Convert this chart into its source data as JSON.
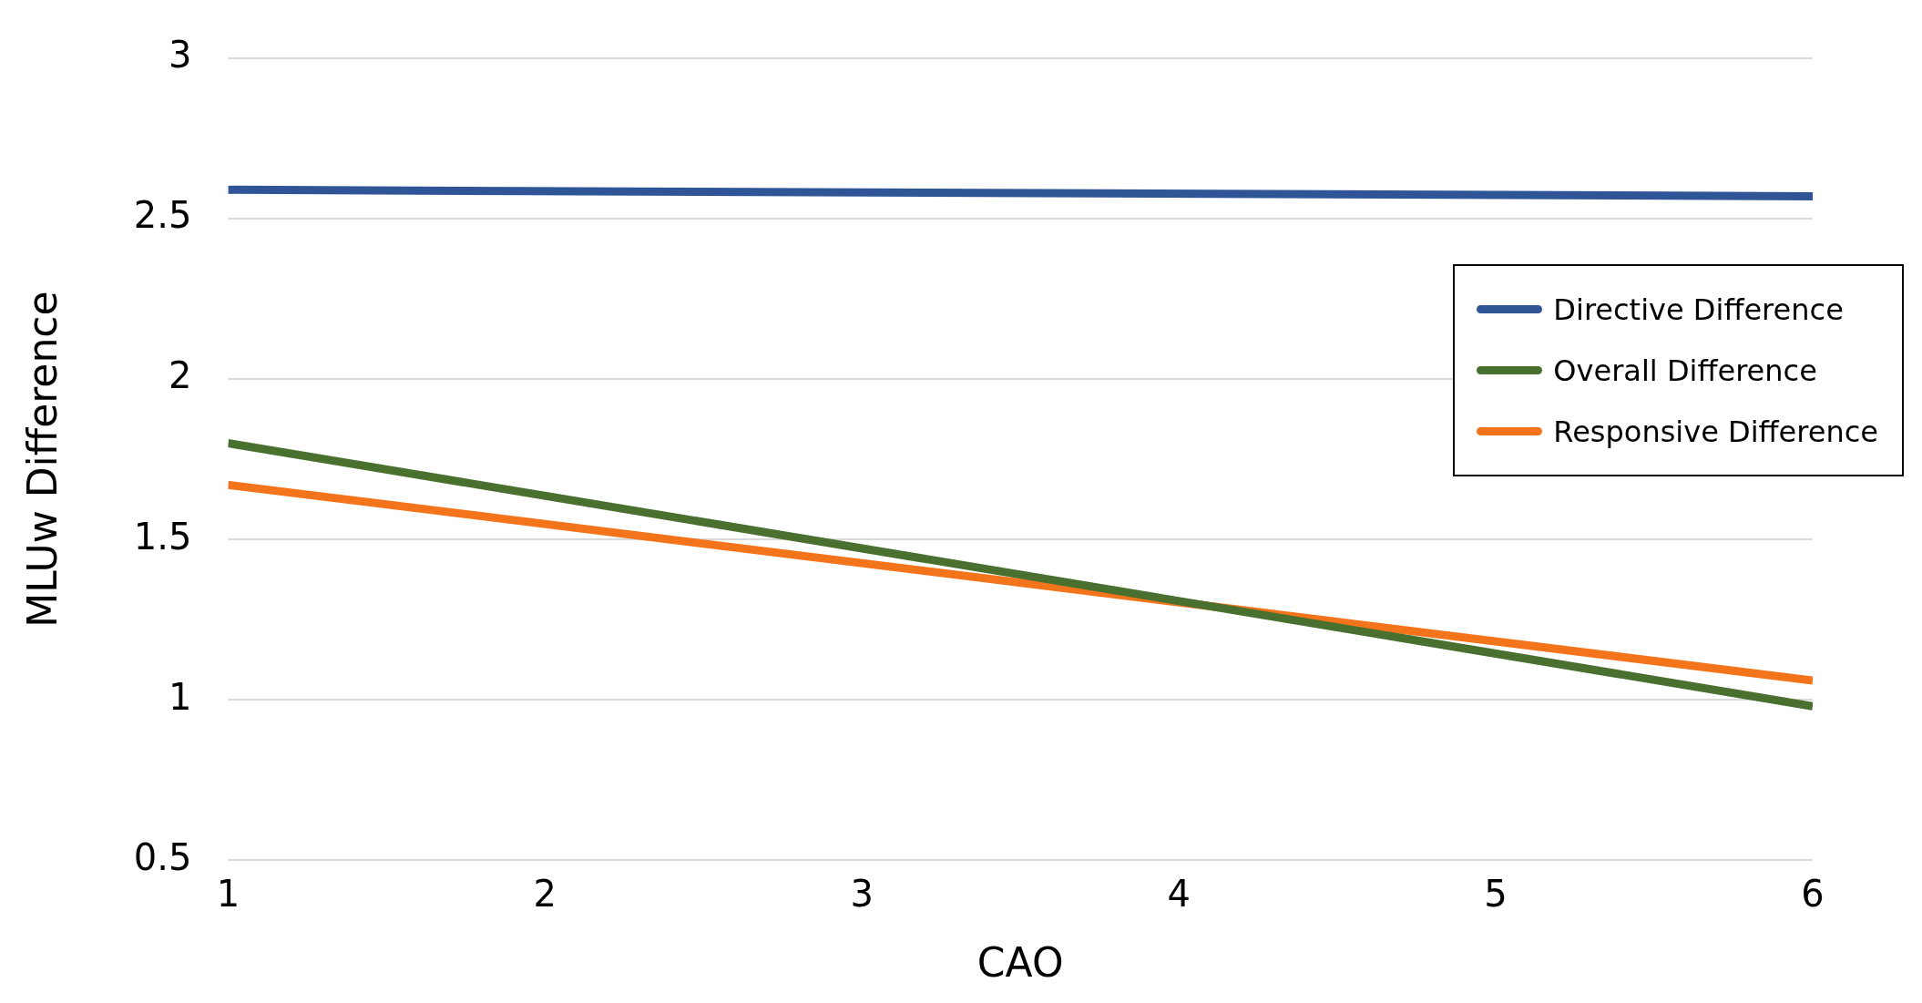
{
  "chart_data": {
    "type": "line",
    "xlabel": "CAO",
    "ylabel": "MLUw Difference",
    "x": [
      1,
      6
    ],
    "series": [
      {
        "name": "Directive Difference",
        "color": "#2f5597",
        "values": [
          2.59,
          2.57
        ]
      },
      {
        "name": "Overall Difference",
        "color": "#4a7030",
        "values": [
          1.8,
          0.98
        ]
      },
      {
        "name": "Responsive Difference",
        "color": "#f4741c",
        "values": [
          1.67,
          1.06
        ]
      }
    ],
    "xlim": [
      1,
      6
    ],
    "xticks": [
      1,
      2,
      3,
      4,
      5,
      6
    ],
    "ylim": [
      0.5,
      3
    ],
    "yticks": [
      0.5,
      1,
      1.5,
      2,
      2.5,
      3
    ],
    "grid": "y",
    "legend": "right",
    "marker": "none",
    "line_style": "solid"
  }
}
